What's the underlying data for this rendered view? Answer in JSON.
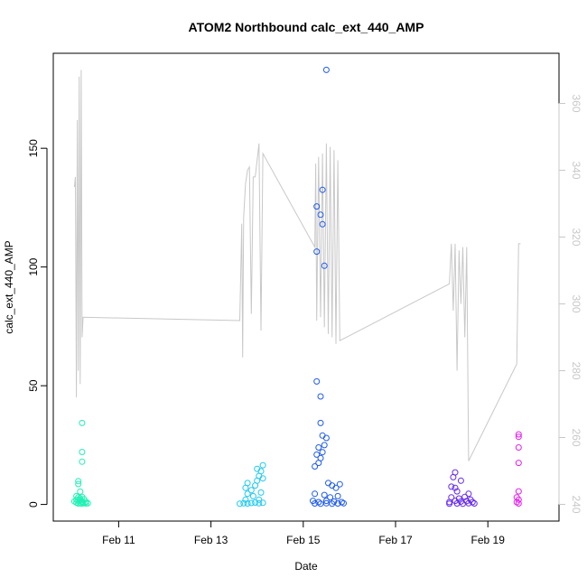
{
  "chart_data": {
    "type": "scatter",
    "title": "ATOM2 Northbound calc_ext_440_AMP",
    "xlabel": "Date",
    "ylabel": "calc_ext_440_AMP",
    "x_axis": {
      "type": "date",
      "range": [
        "2024-02-09 14:00",
        "2024-02-20 13:00"
      ],
      "ticks": [
        "Feb 11",
        "Feb 13",
        "Feb 15",
        "Feb 17",
        "Feb 19"
      ]
    },
    "y_axis_left": {
      "range": [
        -7,
        190
      ],
      "ticks": [
        0,
        50,
        100,
        150
      ]
    },
    "y_axis_right": {
      "range": [
        235,
        375
      ],
      "ticks": [
        240,
        260,
        280,
        300,
        320,
        340,
        360
      ],
      "color": "#c8c8c8"
    },
    "grid": false,
    "points": [
      {
        "t": "2024-02-10 05:00",
        "y": 34.3,
        "color": "#21f0b4"
      },
      {
        "t": "2024-02-10 05:00",
        "y": 22.1,
        "color": "#21f0b4"
      },
      {
        "t": "2024-02-10 05:00",
        "y": 18.0,
        "color": "#21f0b4"
      },
      {
        "t": "2024-02-10 03:00",
        "y": 9.8,
        "color": "#21f0b4"
      },
      {
        "t": "2024-02-10 03:00",
        "y": 8.6,
        "color": "#21f0b4"
      },
      {
        "t": "2024-02-10 04:00",
        "y": 5.4,
        "color": "#21f0b4"
      },
      {
        "t": "2024-02-10 02:00",
        "y": 3.5,
        "color": "#21f0b4"
      },
      {
        "t": "2024-02-10 03:00",
        "y": 3.0,
        "color": "#21f0b4"
      },
      {
        "t": "2024-02-10 04:00",
        "y": 2.6,
        "color": "#21f0b4"
      },
      {
        "t": "2024-02-10 05:00",
        "y": 3.2,
        "color": "#21f0b4"
      },
      {
        "t": "2024-02-10 02:00",
        "y": 2.0,
        "color": "#21f0b4"
      },
      {
        "t": "2024-02-10 03:00",
        "y": 1.6,
        "color": "#21f0b4"
      },
      {
        "t": "2024-02-10 04:00",
        "y": 1.8,
        "color": "#21f0b4"
      },
      {
        "t": "2024-02-10 05:00",
        "y": 1.2,
        "color": "#21f0b4"
      },
      {
        "t": "2024-02-10 06:00",
        "y": 2.2,
        "color": "#21f0b4"
      },
      {
        "t": "2024-02-10 07:00",
        "y": 1.1,
        "color": "#21f0b4"
      },
      {
        "t": "2024-02-10 02:00",
        "y": 0.8,
        "color": "#21f0b4"
      },
      {
        "t": "2024-02-10 03:00",
        "y": 0.4,
        "color": "#21f0b4"
      },
      {
        "t": "2024-02-10 04:00",
        "y": 0.5,
        "color": "#21f0b4"
      },
      {
        "t": "2024-02-10 05:00",
        "y": 0.3,
        "color": "#21f0b4"
      },
      {
        "t": "2024-02-10 06:00",
        "y": 0.6,
        "color": "#21f0b4"
      },
      {
        "t": "2024-02-10 07:00",
        "y": 0.4,
        "color": "#21f0b4"
      },
      {
        "t": "2024-02-10 08:00",
        "y": 0.5,
        "color": "#21f0b4"
      },
      {
        "t": "2024-02-10 01:00",
        "y": 1.3,
        "color": "#21f0b4"
      },
      {
        "t": "2024-02-13 15:00",
        "y": 0.3,
        "color": "#1ec8f0"
      },
      {
        "t": "2024-02-13 17:00",
        "y": 0.5,
        "color": "#1ec8f0"
      },
      {
        "t": "2024-02-13 19:00",
        "y": 0.4,
        "color": "#1ec8f0"
      },
      {
        "t": "2024-02-13 21:00",
        "y": 0.6,
        "color": "#1ec8f0"
      },
      {
        "t": "2024-02-13 23:00",
        "y": 0.8,
        "color": "#1ec8f0"
      },
      {
        "t": "2024-02-14 01:00",
        "y": 0.5,
        "color": "#1ec8f0"
      },
      {
        "t": "2024-02-14 03:00",
        "y": 0.7,
        "color": "#1ec8f0"
      },
      {
        "t": "2024-02-13 18:00",
        "y": 2.0,
        "color": "#1ec8f0"
      },
      {
        "t": "2024-02-13 19:00",
        "y": 4.5,
        "color": "#1ec8f0"
      },
      {
        "t": "2024-02-13 18:00",
        "y": 7.0,
        "color": "#1ec8f0"
      },
      {
        "t": "2024-02-13 19:00",
        "y": 9.0,
        "color": "#1ec8f0"
      },
      {
        "t": "2024-02-13 21:00",
        "y": 6.0,
        "color": "#1ec8f0"
      },
      {
        "t": "2024-02-13 22:00",
        "y": 3.5,
        "color": "#1ec8f0"
      },
      {
        "t": "2024-02-13 23:00",
        "y": 8.0,
        "color": "#1ec8f0"
      },
      {
        "t": "2024-02-14 00:00",
        "y": 10.0,
        "color": "#1ec8f0"
      },
      {
        "t": "2024-02-14 00:00",
        "y": 15.0,
        "color": "#1ec8f0"
      },
      {
        "t": "2024-02-14 01:00",
        "y": 12.0,
        "color": "#1ec8f0"
      },
      {
        "t": "2024-02-14 02:00",
        "y": 14.0,
        "color": "#1ec8f0"
      },
      {
        "t": "2024-02-14 03:00",
        "y": 16.5,
        "color": "#1ec8f0"
      },
      {
        "t": "2024-02-14 03:00",
        "y": 11.0,
        "color": "#1ec8f0"
      },
      {
        "t": "2024-02-14 02:00",
        "y": 5.0,
        "color": "#1ec8f0"
      },
      {
        "t": "2024-02-14 01:00",
        "y": 2.0,
        "color": "#1ec8f0"
      },
      {
        "t": "2024-02-15 12:00",
        "y": 183.0,
        "color": "#1e5af0"
      },
      {
        "t": "2024-02-15 10:00",
        "y": 132.5,
        "color": "#1e5af0"
      },
      {
        "t": "2024-02-15 07:00",
        "y": 125.5,
        "color": "#1e5af0"
      },
      {
        "t": "2024-02-15 09:00",
        "y": 122.0,
        "color": "#1e5af0"
      },
      {
        "t": "2024-02-15 10:00",
        "y": 118.0,
        "color": "#1e5af0"
      },
      {
        "t": "2024-02-15 07:00",
        "y": 106.5,
        "color": "#1e5af0"
      },
      {
        "t": "2024-02-15 11:00",
        "y": 100.5,
        "color": "#1e5af0"
      },
      {
        "t": "2024-02-15 07:00",
        "y": 51.8,
        "color": "#1e5af0"
      },
      {
        "t": "2024-02-15 09:00",
        "y": 45.5,
        "color": "#1e5af0"
      },
      {
        "t": "2024-02-15 09:00",
        "y": 34.3,
        "color": "#1e5af0"
      },
      {
        "t": "2024-02-15 10:00",
        "y": 29.0,
        "color": "#1e5af0"
      },
      {
        "t": "2024-02-15 12:00",
        "y": 28.0,
        "color": "#1e5af0"
      },
      {
        "t": "2024-02-15 11:00",
        "y": 25.0,
        "color": "#1e5af0"
      },
      {
        "t": "2024-02-15 08:00",
        "y": 24.0,
        "color": "#1e5af0"
      },
      {
        "t": "2024-02-15 10:00",
        "y": 22.0,
        "color": "#1e5af0"
      },
      {
        "t": "2024-02-15 07:00",
        "y": 21.0,
        "color": "#1e5af0"
      },
      {
        "t": "2024-02-15 09:00",
        "y": 19.5,
        "color": "#1e5af0"
      },
      {
        "t": "2024-02-15 08:00",
        "y": 17.5,
        "color": "#1e5af0"
      },
      {
        "t": "2024-02-15 06:00",
        "y": 16.0,
        "color": "#1e5af0"
      },
      {
        "t": "2024-02-15 13:00",
        "y": 9.0,
        "color": "#1e5af0"
      },
      {
        "t": "2024-02-15 15:00",
        "y": 8.0,
        "color": "#1e5af0"
      },
      {
        "t": "2024-02-15 17:00",
        "y": 7.0,
        "color": "#1e5af0"
      },
      {
        "t": "2024-02-15 19:00",
        "y": 8.5,
        "color": "#1e5af0"
      },
      {
        "t": "2024-02-15 06:00",
        "y": 4.5,
        "color": "#1e5af0"
      },
      {
        "t": "2024-02-15 11:00",
        "y": 4.0,
        "color": "#1e5af0"
      },
      {
        "t": "2024-02-15 14:00",
        "y": 3.0,
        "color": "#1e5af0"
      },
      {
        "t": "2024-02-15 18:00",
        "y": 3.5,
        "color": "#1e5af0"
      },
      {
        "t": "2024-02-15 05:00",
        "y": 1.5,
        "color": "#1e5af0"
      },
      {
        "t": "2024-02-15 08:00",
        "y": 1.0,
        "color": "#1e5af0"
      },
      {
        "t": "2024-02-15 12:00",
        "y": 1.5,
        "color": "#1e5af0"
      },
      {
        "t": "2024-02-15 16:00",
        "y": 1.2,
        "color": "#1e5af0"
      },
      {
        "t": "2024-02-15 20:00",
        "y": 1.0,
        "color": "#1e5af0"
      },
      {
        "t": "2024-02-15 06:00",
        "y": 0.4,
        "color": "#1e5af0"
      },
      {
        "t": "2024-02-15 09:00",
        "y": 0.3,
        "color": "#1e5af0"
      },
      {
        "t": "2024-02-15 12:00",
        "y": 0.5,
        "color": "#1e5af0"
      },
      {
        "t": "2024-02-15 15:00",
        "y": 0.3,
        "color": "#1e5af0"
      },
      {
        "t": "2024-02-15 18:00",
        "y": 0.4,
        "color": "#1e5af0"
      },
      {
        "t": "2024-02-15 21:00",
        "y": 0.5,
        "color": "#1e5af0"
      },
      {
        "t": "2024-02-18 07:00",
        "y": 13.5,
        "color": "#6428f0"
      },
      {
        "t": "2024-02-18 06:00",
        "y": 11.5,
        "color": "#6428f0"
      },
      {
        "t": "2024-02-18 10:00",
        "y": 10.0,
        "color": "#6428f0"
      },
      {
        "t": "2024-02-18 05:00",
        "y": 7.5,
        "color": "#6428f0"
      },
      {
        "t": "2024-02-18 07:00",
        "y": 7.0,
        "color": "#6428f0"
      },
      {
        "t": "2024-02-18 08:00",
        "y": 5.5,
        "color": "#6428f0"
      },
      {
        "t": "2024-02-18 14:00",
        "y": 4.5,
        "color": "#6428f0"
      },
      {
        "t": "2024-02-18 05:00",
        "y": 3.0,
        "color": "#6428f0"
      },
      {
        "t": "2024-02-18 09:00",
        "y": 2.5,
        "color": "#6428f0"
      },
      {
        "t": "2024-02-18 12:00",
        "y": 3.2,
        "color": "#6428f0"
      },
      {
        "t": "2024-02-18 15:00",
        "y": 2.0,
        "color": "#6428f0"
      },
      {
        "t": "2024-02-18 04:00",
        "y": 1.0,
        "color": "#6428f0"
      },
      {
        "t": "2024-02-18 07:00",
        "y": 1.5,
        "color": "#6428f0"
      },
      {
        "t": "2024-02-18 10:00",
        "y": 1.2,
        "color": "#6428f0"
      },
      {
        "t": "2024-02-18 13:00",
        "y": 1.4,
        "color": "#6428f0"
      },
      {
        "t": "2024-02-18 16:00",
        "y": 1.0,
        "color": "#6428f0"
      },
      {
        "t": "2024-02-18 04:00",
        "y": 0.3,
        "color": "#6428f0"
      },
      {
        "t": "2024-02-18 08:00",
        "y": 0.4,
        "color": "#6428f0"
      },
      {
        "t": "2024-02-18 11:00",
        "y": 0.3,
        "color": "#6428f0"
      },
      {
        "t": "2024-02-18 14:00",
        "y": 0.5,
        "color": "#6428f0"
      },
      {
        "t": "2024-02-18 17:00",
        "y": 0.4,
        "color": "#6428f0"
      },
      {
        "t": "2024-02-19 16:00",
        "y": 29.5,
        "color": "#e61ef0"
      },
      {
        "t": "2024-02-19 16:00",
        "y": 28.5,
        "color": "#e61ef0"
      },
      {
        "t": "2024-02-19 16:00",
        "y": 24.0,
        "color": "#e61ef0"
      },
      {
        "t": "2024-02-19 16:00",
        "y": 17.5,
        "color": "#e61ef0"
      },
      {
        "t": "2024-02-19 16:00",
        "y": 5.5,
        "color": "#e61ef0"
      },
      {
        "t": "2024-02-19 15:00",
        "y": 3.0,
        "color": "#e61ef0"
      },
      {
        "t": "2024-02-19 16:00",
        "y": 2.0,
        "color": "#e61ef0"
      },
      {
        "t": "2024-02-19 15:00",
        "y": 1.0,
        "color": "#e61ef0"
      },
      {
        "t": "2024-02-19 16:00",
        "y": 0.4,
        "color": "#e61ef0"
      }
    ],
    "line_series": {
      "axis": "right",
      "color": "#c8c8c8",
      "points": [
        {
          "t": "2024-02-10 01:00",
          "y": 335
        },
        {
          "t": "2024-02-10 01:30",
          "y": 338
        },
        {
          "t": "2024-02-10 02:00",
          "y": 272
        },
        {
          "t": "2024-02-10 02:30",
          "y": 355
        },
        {
          "t": "2024-02-10 03:00",
          "y": 280
        },
        {
          "t": "2024-02-10 03:30",
          "y": 368
        },
        {
          "t": "2024-02-10 04:00",
          "y": 276
        },
        {
          "t": "2024-02-10 04:30",
          "y": 370
        },
        {
          "t": "2024-02-10 05:00",
          "y": 290
        },
        {
          "t": "2024-02-10 05:30",
          "y": 296
        },
        {
          "t": "2024-02-13 15:00",
          "y": 295
        },
        {
          "t": "2024-02-13 16:00",
          "y": 324
        },
        {
          "t": "2024-02-13 16:30",
          "y": 284
        },
        {
          "t": "2024-02-13 17:00",
          "y": 326
        },
        {
          "t": "2024-02-13 18:00",
          "y": 336
        },
        {
          "t": "2024-02-13 19:00",
          "y": 340
        },
        {
          "t": "2024-02-13 20:00",
          "y": 341
        },
        {
          "t": "2024-02-13 21:00",
          "y": 297
        },
        {
          "t": "2024-02-13 22:00",
          "y": 338
        },
        {
          "t": "2024-02-13 23:00",
          "y": 338
        },
        {
          "t": "2024-02-14 00:00",
          "y": 343
        },
        {
          "t": "2024-02-14 01:00",
          "y": 348
        },
        {
          "t": "2024-02-14 02:00",
          "y": 292
        },
        {
          "t": "2024-02-14 03:00",
          "y": 345
        },
        {
          "t": "2024-02-15 06:00",
          "y": 317
        },
        {
          "t": "2024-02-15 06:30",
          "y": 342
        },
        {
          "t": "2024-02-15 07:00",
          "y": 295
        },
        {
          "t": "2024-02-15 08:00",
          "y": 344
        },
        {
          "t": "2024-02-15 09:00",
          "y": 296
        },
        {
          "t": "2024-02-15 10:00",
          "y": 345
        },
        {
          "t": "2024-02-15 11:00",
          "y": 293
        },
        {
          "t": "2024-02-15 12:00",
          "y": 348
        },
        {
          "t": "2024-02-15 13:00",
          "y": 291
        },
        {
          "t": "2024-02-15 14:00",
          "y": 347
        },
        {
          "t": "2024-02-15 15:00",
          "y": 290
        },
        {
          "t": "2024-02-15 16:00",
          "y": 346
        },
        {
          "t": "2024-02-15 17:00",
          "y": 288
        },
        {
          "t": "2024-02-15 18:00",
          "y": 343
        },
        {
          "t": "2024-02-15 19:00",
          "y": 289
        },
        {
          "t": "2024-02-18 04:00",
          "y": 306
        },
        {
          "t": "2024-02-18 05:00",
          "y": 318
        },
        {
          "t": "2024-02-18 06:00",
          "y": 298
        },
        {
          "t": "2024-02-18 07:00",
          "y": 318
        },
        {
          "t": "2024-02-18 08:00",
          "y": 280
        },
        {
          "t": "2024-02-18 09:00",
          "y": 316
        },
        {
          "t": "2024-02-18 10:00",
          "y": 300
        },
        {
          "t": "2024-02-18 11:00",
          "y": 317
        },
        {
          "t": "2024-02-18 12:00",
          "y": 290
        },
        {
          "t": "2024-02-18 13:00",
          "y": 317
        },
        {
          "t": "2024-02-18 14:00",
          "y": 253
        },
        {
          "t": "2024-02-19 15:00",
          "y": 282
        },
        {
          "t": "2024-02-19 16:00",
          "y": 318
        },
        {
          "t": "2024-02-19 17:00",
          "y": 318
        }
      ]
    }
  }
}
